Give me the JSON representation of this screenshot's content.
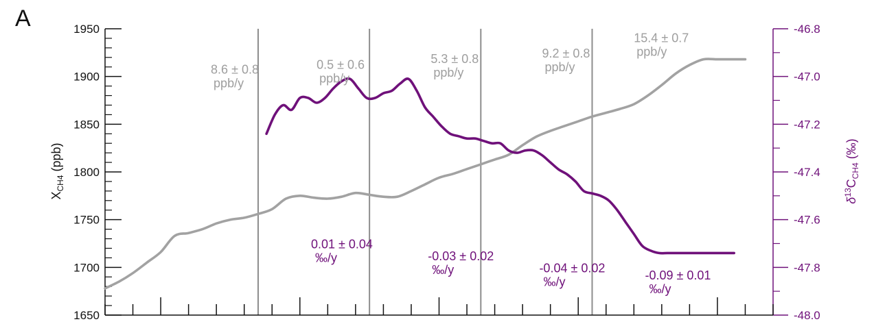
{
  "chart_data": {
    "type": "line",
    "panel_label": "A",
    "left_axis": {
      "label_main": "X",
      "label_sub": "CH4",
      "label_rest": " (ppb)",
      "ylim": [
        1650,
        1950
      ],
      "ticks": [
        "1650",
        "1700",
        "1750",
        "1800",
        "1850",
        "1900",
        "1950"
      ],
      "color": "#111111"
    },
    "right_axis": {
      "label_delta": "δ",
      "label_sup": "13",
      "label_main": "C",
      "label_sub": "CH4",
      "label_rest": " (‰)",
      "ylim": [
        -48.0,
        -46.8
      ],
      "ticks": [
        "-48.0",
        "-47.8",
        "-47.6",
        "-47.4",
        "-47.2",
        "-47.0",
        "-46.8"
      ],
      "color": "#6f117a"
    },
    "x": {
      "xlim": [
        0,
        24
      ],
      "minor_ticks": 25,
      "major_every": 5
    },
    "series": [
      {
        "axis": "left",
        "color": "#a2a2a2",
        "x": [
          0,
          0.5,
          1.0,
          1.5,
          2.0,
          2.5,
          3.0,
          3.5,
          4.0,
          4.5,
          5.0,
          5.5,
          6.0,
          6.5,
          7.0,
          7.5,
          8.0,
          8.5,
          9.0,
          9.5,
          10.0,
          10.5,
          11.0,
          11.5,
          12.0,
          12.5,
          13.0,
          13.5,
          14.0,
          14.5,
          15.0,
          15.5,
          16.0,
          16.5,
          17.0,
          17.5,
          18.0,
          18.5,
          19.0,
          19.5,
          20.0,
          20.5,
          21.0,
          21.5,
          22.0,
          22.5,
          23.0,
          23.5
        ],
        "values": [
          1678,
          1685,
          1694,
          1705,
          1716,
          1733,
          1736,
          1740,
          1746,
          1750,
          1752,
          1756,
          1761,
          1772,
          1775,
          1773,
          1772,
          1774,
          1778,
          1776,
          1774,
          1774,
          1780,
          1787,
          1794,
          1798,
          1803,
          1808,
          1813,
          1818,
          1828,
          1837,
          1843,
          1848,
          1853,
          1858,
          1862,
          1866,
          1871,
          1880,
          1891,
          1903,
          1912,
          1918,
          1918,
          1918,
          1918,
          1918
        ]
      },
      {
        "axis": "right",
        "color": "#6f117a",
        "x": [
          5.8,
          6.1,
          6.4,
          6.7,
          7.0,
          7.3,
          7.6,
          7.9,
          8.2,
          8.5,
          8.8,
          9.1,
          9.4,
          9.7,
          10.0,
          10.3,
          10.6,
          10.9,
          11.2,
          11.5,
          11.8,
          12.1,
          12.4,
          12.7,
          13.0,
          13.3,
          13.6,
          13.9,
          14.2,
          14.5,
          14.8,
          15.1,
          15.4,
          15.7,
          16.0,
          16.3,
          16.6,
          16.9,
          17.2,
          17.5,
          17.8,
          18.1,
          18.4,
          18.7,
          19.0,
          19.3,
          19.6,
          19.9,
          20.2,
          20.5,
          20.8,
          21.1,
          21.4,
          21.7,
          22.0,
          22.3,
          22.6
        ],
        "values": [
          -47.24,
          -47.16,
          -47.12,
          -47.14,
          -47.09,
          -47.09,
          -47.11,
          -47.09,
          -47.05,
          -47.02,
          -47.01,
          -47.05,
          -47.09,
          -47.09,
          -47.07,
          -47.06,
          -47.03,
          -47.01,
          -47.06,
          -47.13,
          -47.17,
          -47.21,
          -47.24,
          -47.25,
          -47.26,
          -47.26,
          -47.27,
          -47.28,
          -47.28,
          -47.31,
          -47.32,
          -47.31,
          -47.31,
          -47.33,
          -47.36,
          -47.39,
          -47.41,
          -47.44,
          -47.48,
          -47.49,
          -47.5,
          -47.52,
          -47.56,
          -47.61,
          -47.66,
          -47.71,
          -47.73,
          -47.74,
          -47.74,
          -47.74,
          -47.74,
          -47.74,
          -47.74,
          -47.74,
          -47.74,
          -47.74,
          -47.74
        ]
      }
    ],
    "vertical_lines_x": [
      5.5,
      9.5,
      13.5,
      17.5
    ],
    "gray_annotations": [
      {
        "x": 3.8,
        "y": 1903,
        "lines": [
          "8.6 ± 0.8",
          "ppb/y"
        ]
      },
      {
        "x": 7.6,
        "y": 1908,
        "lines": [
          "0.5 ± 0.6",
          "ppb/y"
        ]
      },
      {
        "x": 11.7,
        "y": 1914,
        "lines": [
          "5.3 ± 0.8",
          "ppb/y"
        ]
      },
      {
        "x": 15.7,
        "y": 1920,
        "lines": [
          "9.2 ± 0.8",
          "ppb/y"
        ]
      },
      {
        "x": 19.0,
        "y": 1936,
        "lines": [
          "15.4 ± 0.7",
          "ppb/y"
        ]
      }
    ],
    "purple_annotations": [
      {
        "x": 7.4,
        "y": -47.72,
        "lines": [
          "0.01 ± 0.04",
          "‰/y"
        ]
      },
      {
        "x": 11.6,
        "y": -47.77,
        "lines": [
          "-0.03 ± 0.02",
          "‰/y"
        ]
      },
      {
        "x": 15.6,
        "y": -47.82,
        "lines": [
          "-0.04 ± 0.02",
          "‰/y"
        ]
      },
      {
        "x": 19.4,
        "y": -47.85,
        "lines": [
          "-0.09 ± 0.01",
          "‰/y"
        ]
      }
    ]
  }
}
